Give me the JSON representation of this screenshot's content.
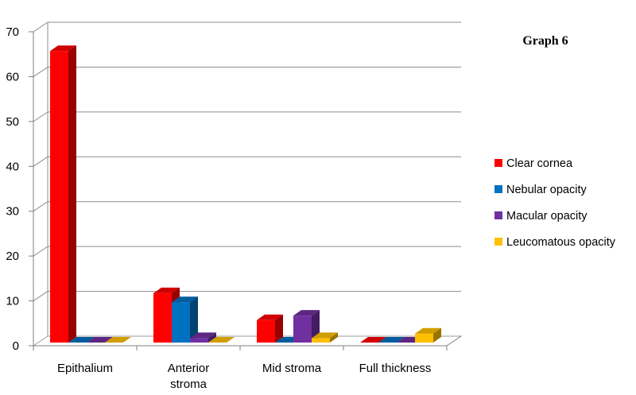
{
  "chart_data": {
    "type": "bar",
    "style": "3d-clustered-column",
    "title": "Graph 6",
    "xlabel": "",
    "ylabel": "",
    "categories": [
      "Epithalium",
      "Anterior stroma",
      "Mid stroma",
      "Full thickness"
    ],
    "category_lines": [
      [
        "Epithalium"
      ],
      [
        "Anterior",
        "stroma"
      ],
      [
        "Mid stroma"
      ],
      [
        "Full thickness"
      ]
    ],
    "series": [
      {
        "name": "Clear cornea",
        "color": "#ff0000",
        "values": [
          65,
          11,
          5,
          0
        ]
      },
      {
        "name": "Nebular opacity",
        "color": "#0070c0",
        "values": [
          0,
          9,
          0,
          0
        ]
      },
      {
        "name": "Macular opacity",
        "color": "#7030a0",
        "values": [
          0,
          1,
          6,
          0
        ]
      },
      {
        "name": "Leucomatous opacity",
        "color": "#ffc000",
        "values": [
          0,
          0,
          1,
          2
        ]
      }
    ],
    "ylim": [
      0,
      70
    ],
    "yticks": [
      0,
      10,
      20,
      30,
      40,
      50,
      60,
      70
    ],
    "grid": true,
    "legend": "right"
  }
}
